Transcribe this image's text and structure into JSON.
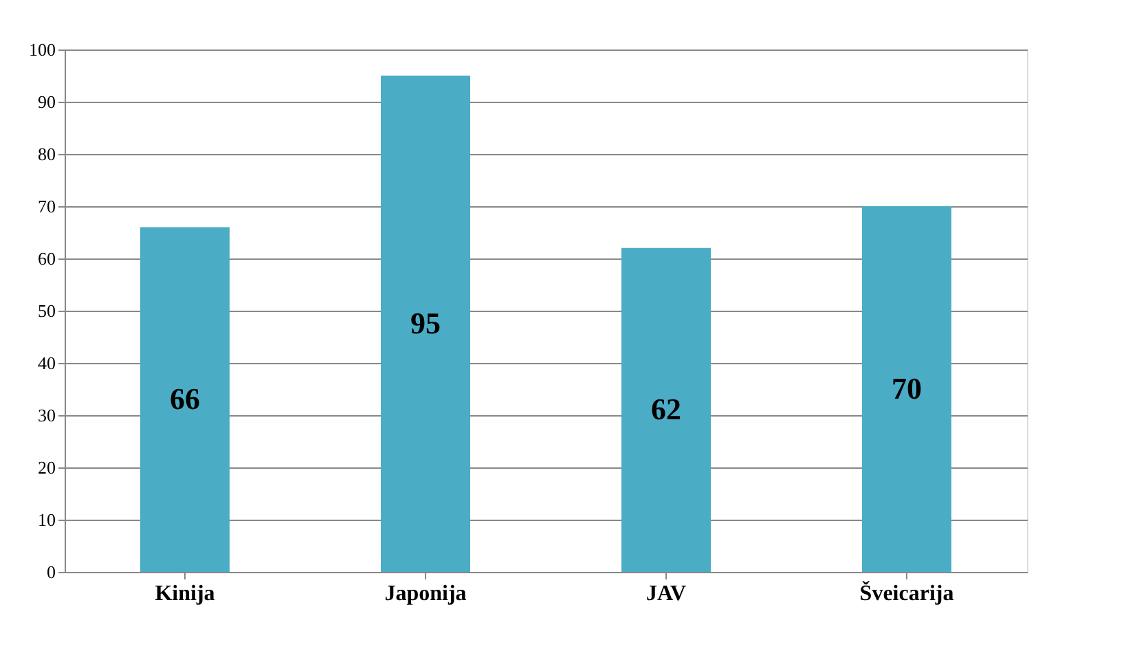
{
  "chart_data": {
    "type": "bar",
    "categories": [
      "Kinija",
      "Japonija",
      "JAV",
      "Šveicarija"
    ],
    "values": [
      66,
      95,
      62,
      70
    ],
    "color": "#4bacc6",
    "ylim": [
      0,
      100
    ],
    "yticks": [
      0,
      10,
      20,
      30,
      40,
      50,
      60,
      70,
      80,
      90,
      100
    ],
    "grid": "y",
    "data_labels": true
  }
}
